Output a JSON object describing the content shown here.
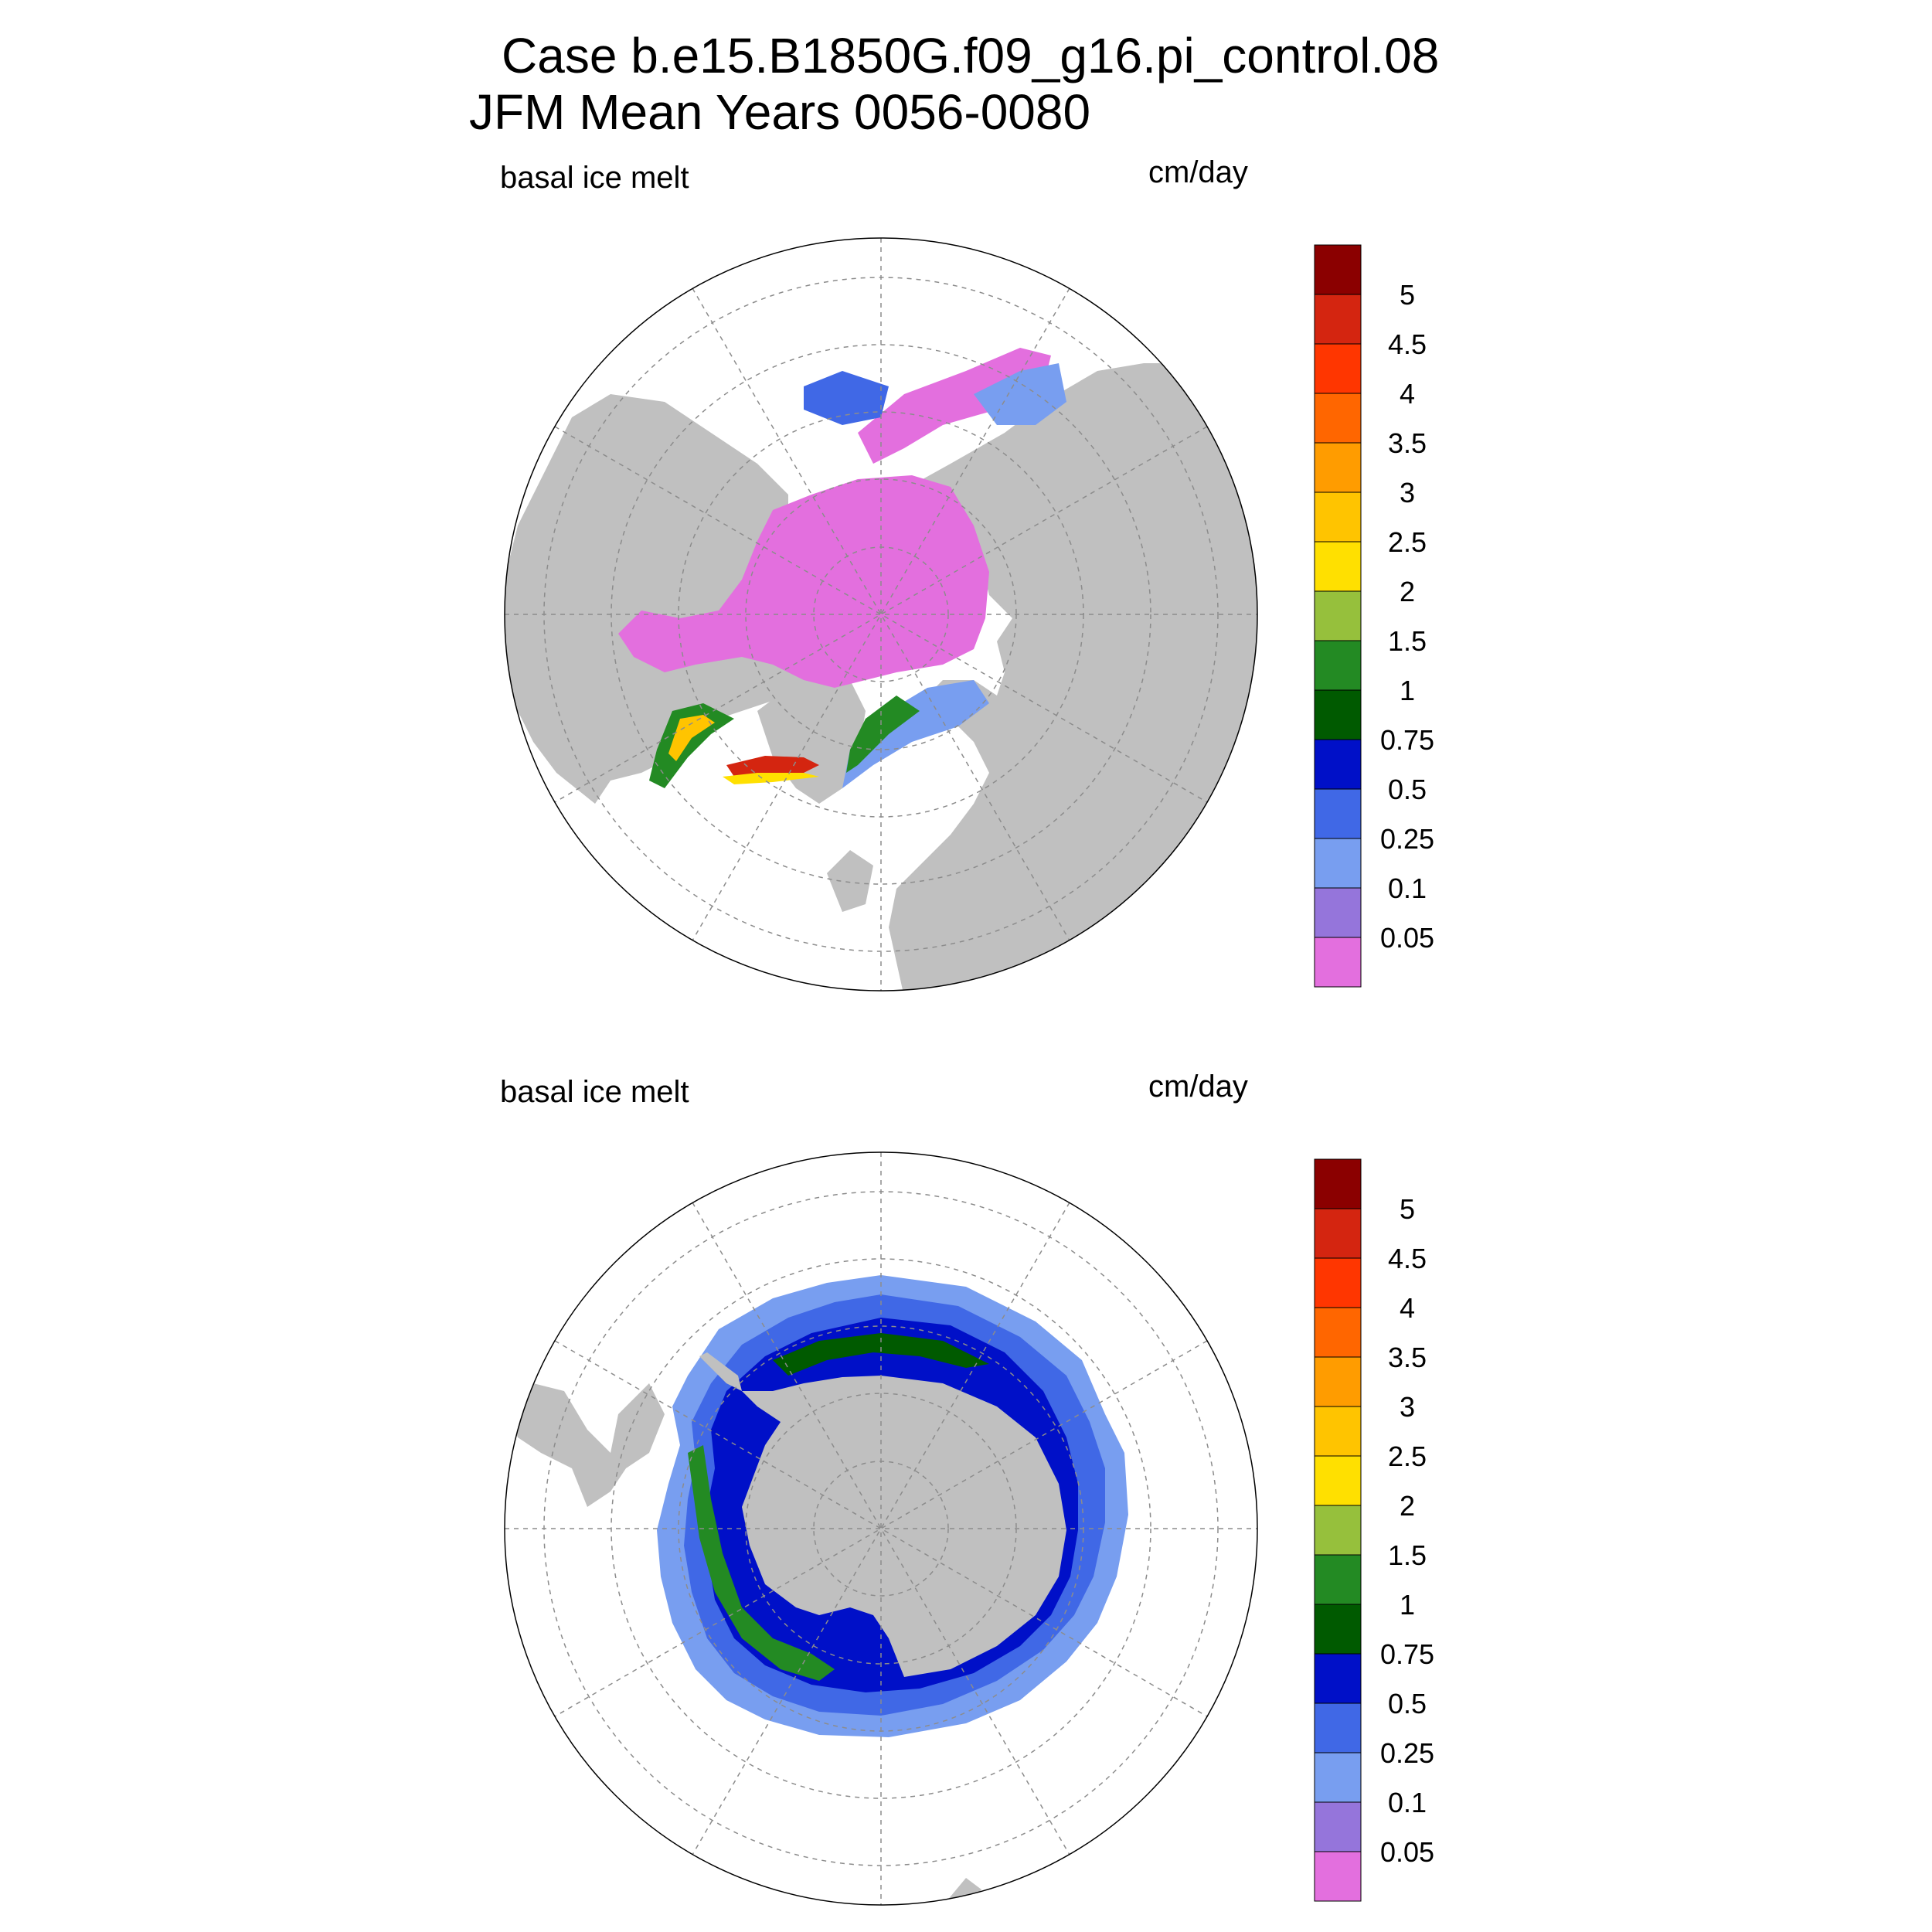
{
  "title": {
    "case": "Case b.e15.B1850G.f09_g16.pi_control.08",
    "period": "JFM Mean    Years 0056-0080"
  },
  "colors": {
    "land": "#c0c0c0",
    "ocean": "#ffffff",
    "grid": "#8c8c8c"
  },
  "levels": [
    {
      "label": "0.05",
      "color": "#e36fde"
    },
    {
      "label": "0.1",
      "color": "#9575db"
    },
    {
      "label": "0.25",
      "color": "#789ef0"
    },
    {
      "label": "0.5",
      "color": "#4068e6"
    },
    {
      "label": "0.75",
      "color": "#0010c8"
    },
    {
      "label": "1",
      "color": "#005a00"
    },
    {
      "label": "1.5",
      "color": "#238a23"
    },
    {
      "label": "2",
      "color": "#96c03c"
    },
    {
      "label": "2.5",
      "color": "#ffe000"
    },
    {
      "label": "3",
      "color": "#ffc400"
    },
    {
      "label": "3.5",
      "color": "#ff9c00"
    },
    {
      "label": "4",
      "color": "#ff6600"
    },
    {
      "label": "4.5",
      "color": "#ff3600"
    },
    {
      "label": "5",
      "color": "#d42510"
    },
    {
      "label": "",
      "color": "#8b0000"
    }
  ],
  "panels": [
    {
      "variable": "basal ice melt",
      "units": "cm/day",
      "hemisphere": "north"
    },
    {
      "variable": "basal ice melt",
      "units": "cm/day",
      "hemisphere": "south"
    }
  ]
}
